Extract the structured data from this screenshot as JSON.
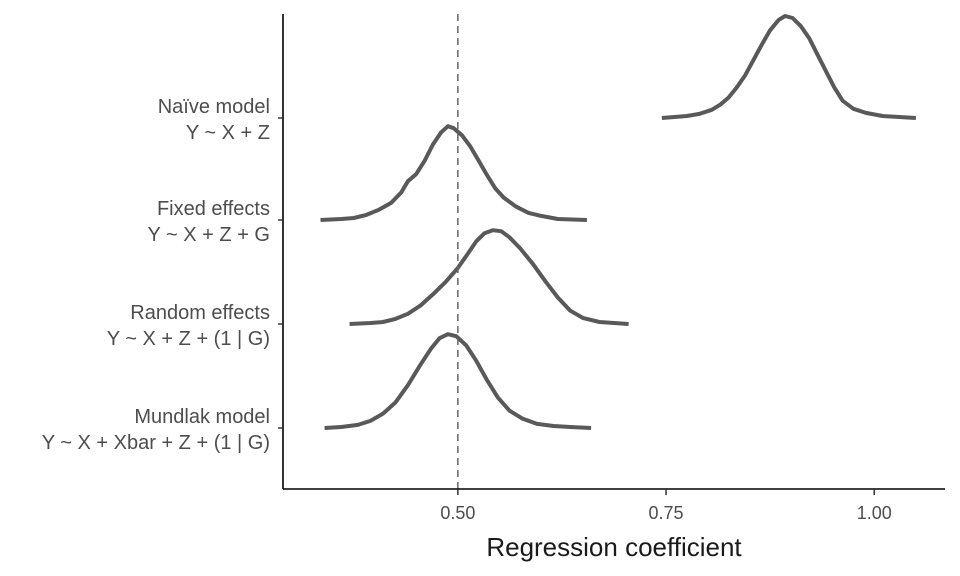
{
  "chart_data": {
    "type": "density_ridgeline",
    "xlabel": "Regression coefficient",
    "xlim": [
      0.29,
      1.085
    ],
    "x_ticks": [
      "0.50",
      "0.75",
      "1.00"
    ],
    "x_tick_values": [
      0.5,
      0.75,
      1.0
    ],
    "reference_line": {
      "x": 0.5,
      "style": "dashed"
    },
    "series": [
      {
        "label_line1": "Naïve model",
        "label_line2": "Y ~ X + Z",
        "range": [
          0.745,
          1.05
        ],
        "points": [
          [
            0.745,
            0.0
          ],
          [
            0.76,
            0.01
          ],
          [
            0.775,
            0.02
          ],
          [
            0.79,
            0.04
          ],
          [
            0.805,
            0.08
          ],
          [
            0.815,
            0.13
          ],
          [
            0.825,
            0.2
          ],
          [
            0.835,
            0.3
          ],
          [
            0.845,
            0.42
          ],
          [
            0.855,
            0.57
          ],
          [
            0.865,
            0.72
          ],
          [
            0.875,
            0.86
          ],
          [
            0.885,
            0.96
          ],
          [
            0.893,
            1.0
          ],
          [
            0.902,
            0.98
          ],
          [
            0.912,
            0.9
          ],
          [
            0.922,
            0.78
          ],
          [
            0.932,
            0.62
          ],
          [
            0.942,
            0.46
          ],
          [
            0.952,
            0.3
          ],
          [
            0.962,
            0.17
          ],
          [
            0.975,
            0.09
          ],
          [
            0.99,
            0.05
          ],
          [
            1.01,
            0.02
          ],
          [
            1.03,
            0.01
          ],
          [
            1.05,
            0.0
          ]
        ]
      },
      {
        "label_line1": "Fixed effects",
        "label_line2": "Y ~ X + Z + G",
        "range": [
          0.335,
          0.655
        ],
        "points": [
          [
            0.335,
            0.0
          ],
          [
            0.36,
            0.01
          ],
          [
            0.375,
            0.02
          ],
          [
            0.39,
            0.05
          ],
          [
            0.405,
            0.1
          ],
          [
            0.42,
            0.17
          ],
          [
            0.432,
            0.27
          ],
          [
            0.44,
            0.38
          ],
          [
            0.45,
            0.45
          ],
          [
            0.46,
            0.58
          ],
          [
            0.47,
            0.74
          ],
          [
            0.48,
            0.86
          ],
          [
            0.488,
            0.92
          ],
          [
            0.495,
            0.9
          ],
          [
            0.505,
            0.83
          ],
          [
            0.515,
            0.72
          ],
          [
            0.525,
            0.58
          ],
          [
            0.535,
            0.44
          ],
          [
            0.545,
            0.31
          ],
          [
            0.555,
            0.22
          ],
          [
            0.57,
            0.13
          ],
          [
            0.585,
            0.07
          ],
          [
            0.6,
            0.04
          ],
          [
            0.62,
            0.01
          ],
          [
            0.655,
            0.0
          ]
        ]
      },
      {
        "label_line1": "Random effects",
        "label_line2": "Y ~ X + Z + (1 | G)",
        "range": [
          0.37,
          0.705
        ],
        "points": [
          [
            0.37,
            0.0
          ],
          [
            0.395,
            0.01
          ],
          [
            0.41,
            0.02
          ],
          [
            0.425,
            0.05
          ],
          [
            0.44,
            0.1
          ],
          [
            0.455,
            0.18
          ],
          [
            0.47,
            0.29
          ],
          [
            0.485,
            0.41
          ],
          [
            0.5,
            0.55
          ],
          [
            0.512,
            0.69
          ],
          [
            0.522,
            0.81
          ],
          [
            0.532,
            0.89
          ],
          [
            0.542,
            0.92
          ],
          [
            0.552,
            0.91
          ],
          [
            0.562,
            0.85
          ],
          [
            0.575,
            0.74
          ],
          [
            0.59,
            0.59
          ],
          [
            0.605,
            0.42
          ],
          [
            0.62,
            0.26
          ],
          [
            0.635,
            0.13
          ],
          [
            0.65,
            0.06
          ],
          [
            0.67,
            0.02
          ],
          [
            0.705,
            0.0
          ]
        ]
      },
      {
        "label_line1": "Mundlak model",
        "label_line2": "Y ~ X + Xbar + Z + (1 | G)",
        "range": [
          0.34,
          0.66
        ],
        "points": [
          [
            0.34,
            0.0
          ],
          [
            0.36,
            0.01
          ],
          [
            0.38,
            0.03
          ],
          [
            0.395,
            0.07
          ],
          [
            0.41,
            0.14
          ],
          [
            0.425,
            0.25
          ],
          [
            0.44,
            0.42
          ],
          [
            0.455,
            0.62
          ],
          [
            0.468,
            0.78
          ],
          [
            0.478,
            0.88
          ],
          [
            0.488,
            0.92
          ],
          [
            0.498,
            0.9
          ],
          [
            0.51,
            0.81
          ],
          [
            0.522,
            0.66
          ],
          [
            0.535,
            0.47
          ],
          [
            0.548,
            0.3
          ],
          [
            0.562,
            0.17
          ],
          [
            0.578,
            0.09
          ],
          [
            0.595,
            0.04
          ],
          [
            0.615,
            0.02
          ],
          [
            0.635,
            0.01
          ],
          [
            0.66,
            0.0
          ]
        ]
      }
    ]
  }
}
